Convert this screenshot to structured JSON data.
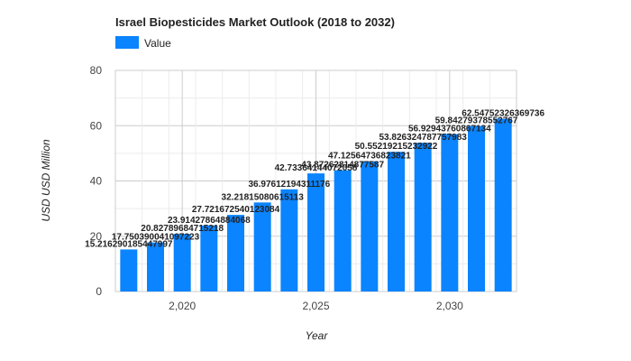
{
  "chart_data": {
    "type": "bar",
    "title": "Israel Biopesticides Market Outlook (2018 to 2032)",
    "xlabel": "Year",
    "ylabel": "USD USD Million",
    "legend": {
      "entries": [
        "Value"
      ],
      "position": "top-left",
      "color": "#0a84ff"
    },
    "x": [
      2018,
      2019,
      2020,
      2021,
      2022,
      2023,
      2024,
      2025,
      2026,
      2027,
      2028,
      2029,
      2030,
      2031,
      2032
    ],
    "series": [
      {
        "name": "Value",
        "color": "#0a84ff",
        "values": [
          15.2162901854,
          17.750390041,
          20.8278968471,
          23.9142786488,
          27.7216725401,
          32.2181508061,
          36.9761219431,
          42.7336414407,
          43.8726281687,
          47.1256473682,
          50.5521921523,
          53.8263247877,
          56.9294376086,
          59.8427937855,
          62.5475232636
        ]
      }
    ],
    "data_labels": [
      "15.216290185447997",
      "17.750390041097223",
      "20.82789684715218",
      "23.91427864884068",
      "27.721672540123084",
      "32.21815080615113",
      "36.97612194311176",
      "42.73364144072058",
      "43.87262814877587",
      "47.12564736823821",
      "50.55219215232922",
      "53.826324787757983",
      "56.92943760867134",
      "59.84279378552767",
      "62.54752326369736"
    ],
    "ylim": [
      0,
      80
    ],
    "yticks": [
      0,
      20,
      40,
      60,
      80
    ],
    "xticks": [
      {
        "value": 2020,
        "label": "2,020"
      },
      {
        "value": 2025,
        "label": "2,025"
      },
      {
        "value": 2030,
        "label": "2,030"
      }
    ],
    "grid": true
  }
}
